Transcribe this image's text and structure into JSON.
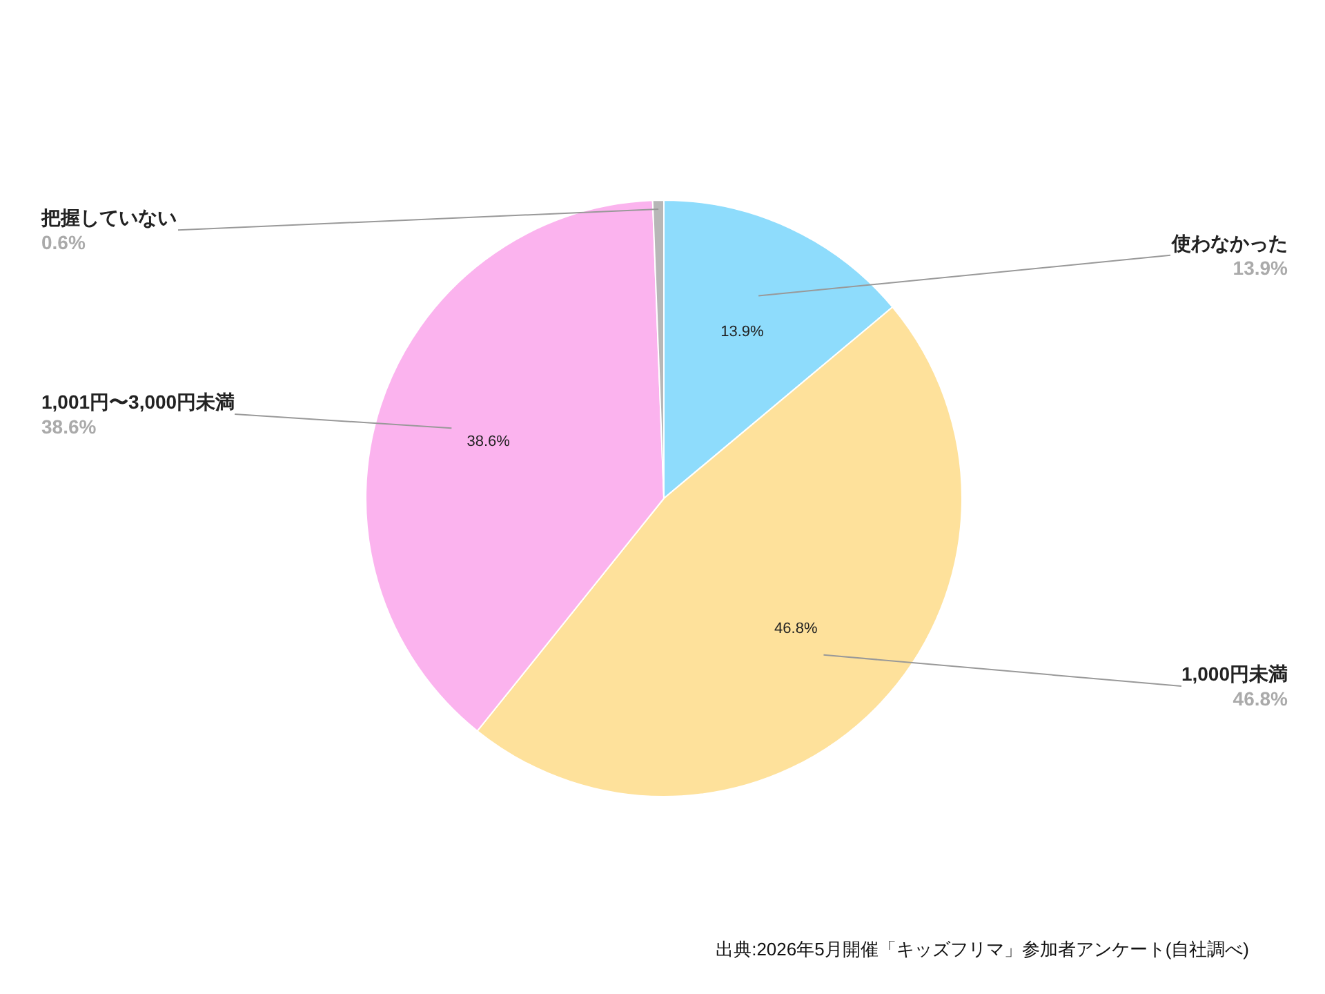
{
  "chart_data": {
    "type": "pie",
    "categories": [
      "使わなかった",
      "1,000円未満",
      "1,001円〜3,000円未満",
      "把握していない"
    ],
    "values": [
      13.9,
      46.8,
      38.6,
      0.6
    ],
    "colors": [
      "#8edcfc",
      "#fee19b",
      "#fbb3ee",
      "#b7b7b7"
    ],
    "value_labels": [
      "13.9%",
      "46.8%",
      "38.6%",
      "0.6%"
    ],
    "annotations": [
      "出典:2026年5月開催「キッズフリマ」参加者アンケート(自社調べ)"
    ]
  }
}
